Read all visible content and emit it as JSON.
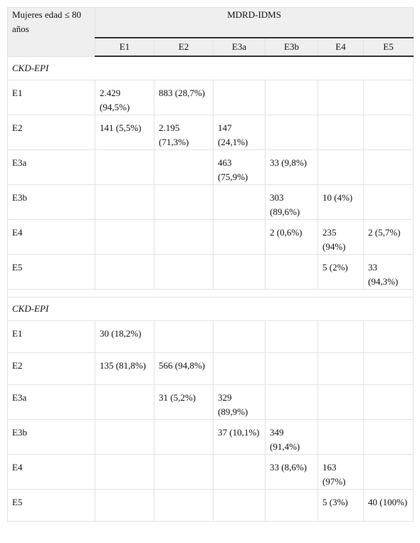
{
  "table": {
    "corner": "Mujeres edad ≤ 80 años",
    "group_header": "MDRD-IDMS",
    "columns": [
      "E1",
      "E2",
      "E3a",
      "E3b",
      "E4",
      "E5"
    ],
    "sections": [
      {
        "label": "CKD-EPI",
        "rows": [
          [
            "E1",
            "2.429 (94,5%)",
            "883 (28,7%)",
            null,
            null,
            null,
            null
          ],
          [
            "E2",
            "141 (5,5%)",
            "2.195 (71,3%)",
            "147 (24,1%)",
            null,
            null,
            null
          ],
          [
            "E3a",
            null,
            null,
            "463 (75,9%)",
            "33 (9,8%)",
            null,
            null
          ],
          [
            "E3b",
            null,
            null,
            null,
            "303 (89,6%)",
            "10 (4%)",
            null
          ],
          [
            "E4",
            null,
            null,
            null,
            "2 (0,6%)",
            "235 (94%)",
            "2 (5,7%)"
          ],
          [
            "E5",
            null,
            null,
            null,
            null,
            "5 (2%)",
            "33 (94,3%)"
          ]
        ]
      },
      {
        "label": "CKD-EPI",
        "rows": [
          [
            "E1",
            "30 (18,2%)",
            null,
            null,
            null,
            null,
            null
          ],
          [
            "E2",
            "135 (81,8%)",
            "566 (94,8%)",
            null,
            null,
            null,
            null
          ],
          [
            "E3a",
            null,
            "31 (5,2%)",
            "329 (89,9%)",
            null,
            null,
            null
          ],
          [
            "E3b",
            null,
            null,
            "37 (10,1%)",
            "349 (91,4%)",
            null,
            null
          ],
          [
            "E4",
            null,
            null,
            null,
            "33 (8,6%)",
            "163 (97%)",
            null
          ],
          [
            "E5",
            null,
            null,
            null,
            null,
            "5 (3%)",
            "40 (100%)"
          ]
        ]
      }
    ]
  }
}
